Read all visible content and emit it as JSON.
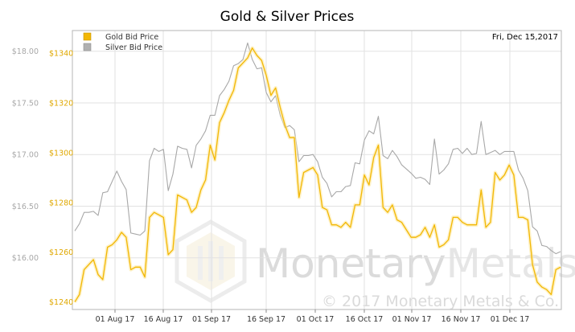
{
  "chart_data": {
    "type": "line",
    "title": "Gold & Silver Prices",
    "date_label": "Fri, Dec 15,2017",
    "watermark": {
      "brand": "Monetary",
      "brand_suffix": "Metals",
      "copyright": "© 2017 Monetary Metals & Co."
    },
    "legend": {
      "placement": "top-left"
    },
    "grid": true,
    "x_ticks": [
      "01 Aug 17",
      "16 Aug 17",
      "01 Sep 17",
      "16 Sep 17",
      "01 Oct 17",
      "16 Oct 17",
      "01 Nov 17",
      "16 Nov 17",
      "01 Dec 17"
    ],
    "y_left": {
      "ticks": [
        "$18.00",
        "$17.50",
        "$17.00",
        "$16.50",
        "$16.00"
      ],
      "ticks_values": [
        18.0,
        17.5,
        17.0,
        16.5,
        16.0
      ],
      "ylim": [
        15.5,
        18.2
      ]
    },
    "y_right": {
      "ticks": [
        "$1340",
        "$1320",
        "$1300",
        "$1280",
        "$1260",
        "$1240"
      ],
      "ticks_values": [
        1340,
        1320,
        1300,
        1280,
        1260,
        1240
      ],
      "ylim": [
        1237,
        1349
      ]
    },
    "series": [
      {
        "name": "Gold Bid Price",
        "axis": "right",
        "color": "#f2b705",
        "values": [
          1240,
          1243,
          1253,
          1255,
          1257,
          1251,
          1249,
          1262,
          1263,
          1265,
          1268,
          1266,
          1253,
          1254,
          1254,
          1250,
          1274,
          1276,
          1275,
          1274,
          1259,
          1261,
          1283,
          1282,
          1281,
          1276,
          1278,
          1285,
          1289,
          1303,
          1297,
          1312,
          1316,
          1321,
          1325,
          1334,
          1336,
          1338,
          1342,
          1339,
          1337,
          1331,
          1323,
          1326,
          1318,
          1311,
          1306,
          1306,
          1282,
          1292,
          1293,
          1294,
          1291,
          1278,
          1277,
          1271,
          1271,
          1270,
          1272,
          1270,
          1279,
          1279,
          1291,
          1287,
          1298,
          1303,
          1278,
          1276,
          1279,
          1273,
          1272,
          1269,
          1266,
          1266,
          1267,
          1270,
          1266,
          1271,
          1262,
          1263,
          1265,
          1274,
          1274,
          1272,
          1271,
          1271,
          1271,
          1285,
          1270,
          1272,
          1292,
          1289,
          1291,
          1295,
          1291,
          1274,
          1274,
          1273,
          1255,
          1248,
          1246,
          1245,
          1243,
          1253,
          1254
        ]
      },
      {
        "name": "Silver Bid Price",
        "axis": "left",
        "color": "#a8a8a8",
        "values": [
          16.26,
          16.33,
          16.44,
          16.44,
          16.45,
          16.41,
          16.63,
          16.64,
          16.74,
          16.84,
          16.74,
          16.66,
          16.24,
          16.23,
          16.22,
          16.26,
          16.94,
          17.06,
          17.03,
          17.05,
          16.65,
          16.81,
          17.08,
          17.06,
          17.05,
          16.87,
          17.09,
          17.15,
          17.23,
          17.38,
          17.38,
          17.57,
          17.63,
          17.71,
          17.86,
          17.88,
          17.92,
          18.08,
          17.92,
          17.83,
          17.84,
          17.6,
          17.51,
          17.57,
          17.38,
          17.26,
          17.28,
          17.24,
          16.93,
          16.99,
          16.99,
          17.0,
          16.93,
          16.78,
          16.72,
          16.59,
          16.64,
          16.64,
          16.69,
          16.7,
          16.92,
          16.91,
          17.14,
          17.23,
          17.2,
          17.37,
          16.99,
          16.96,
          17.04,
          16.98,
          16.9,
          16.86,
          16.82,
          16.77,
          16.78,
          16.76,
          16.71,
          17.15,
          16.81,
          16.85,
          16.91,
          17.05,
          17.06,
          17.01,
          17.06,
          17.0,
          17.01,
          17.32,
          17.0,
          17.02,
          17.04,
          17.0,
          17.03,
          17.03,
          17.03,
          16.85,
          16.77,
          16.65,
          16.3,
          16.26,
          16.12,
          16.11,
          16.07,
          16.04,
          16.06
        ]
      }
    ]
  }
}
